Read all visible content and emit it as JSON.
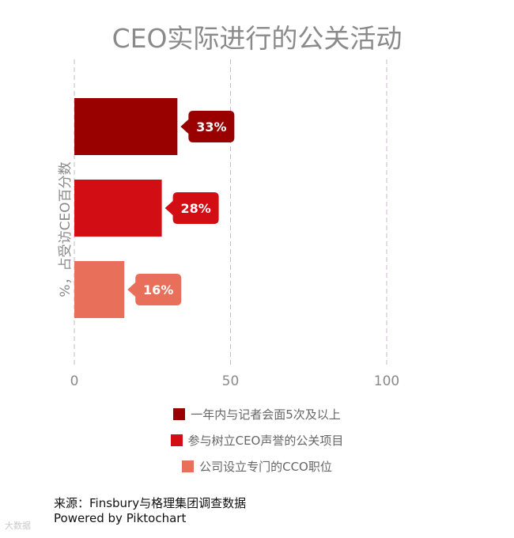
{
  "chart_data": {
    "type": "bar",
    "orientation": "horizontal",
    "title": "CEO实际进行的公关活动",
    "ylabel": "%，占受访CEO百分数",
    "xlabel": "",
    "xlim": [
      0,
      100
    ],
    "x_ticks": [
      "0",
      "50",
      "100"
    ],
    "grid": "vertical-dashed",
    "legend_position": "bottom",
    "categories": [
      "一年内与记者会面5次及以上",
      "参与树立CEO声誉的公关项目",
      "公司设立专门的CCO职位"
    ],
    "values": [
      33,
      28,
      16
    ],
    "data_labels": [
      "33%",
      "28%",
      "16%"
    ],
    "colors": [
      "#990000",
      "#d30d14",
      "#e8705a"
    ]
  },
  "footer": {
    "source": "来源：Finsbury与格理集团调查数据",
    "powered": "Powered by Piktochart",
    "watermark": "大数据"
  }
}
